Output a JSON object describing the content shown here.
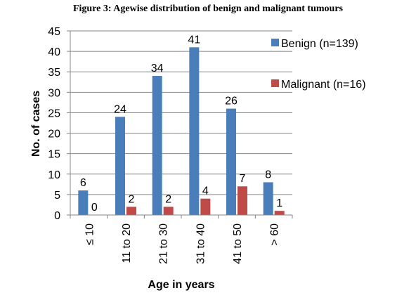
{
  "figure_title": "Figure 3: Agewise distribution of benign and malignant tumours",
  "chart_data": {
    "type": "bar",
    "title": "Figure 3: Agewise distribution of benign and malignant tumours",
    "xlabel": "Age in years",
    "ylabel": "No. of cases",
    "ylim": [
      0,
      45
    ],
    "yticks": [
      0,
      5,
      10,
      15,
      20,
      25,
      30,
      35,
      40,
      45
    ],
    "categories": [
      "≤ 10",
      "11 to 20",
      "21 to 30",
      "31 to 40",
      "41 to 50",
      "> 60"
    ],
    "series": [
      {
        "name": "Benign (n=139)",
        "values": [
          6,
          24,
          34,
          41,
          26,
          8
        ],
        "color": "#4a7ebb"
      },
      {
        "name": "Malignant (n=16)",
        "values": [
          0,
          2,
          2,
          4,
          7,
          1
        ],
        "color": "#be4b48"
      }
    ],
    "grid": true,
    "legend_position": "right"
  }
}
